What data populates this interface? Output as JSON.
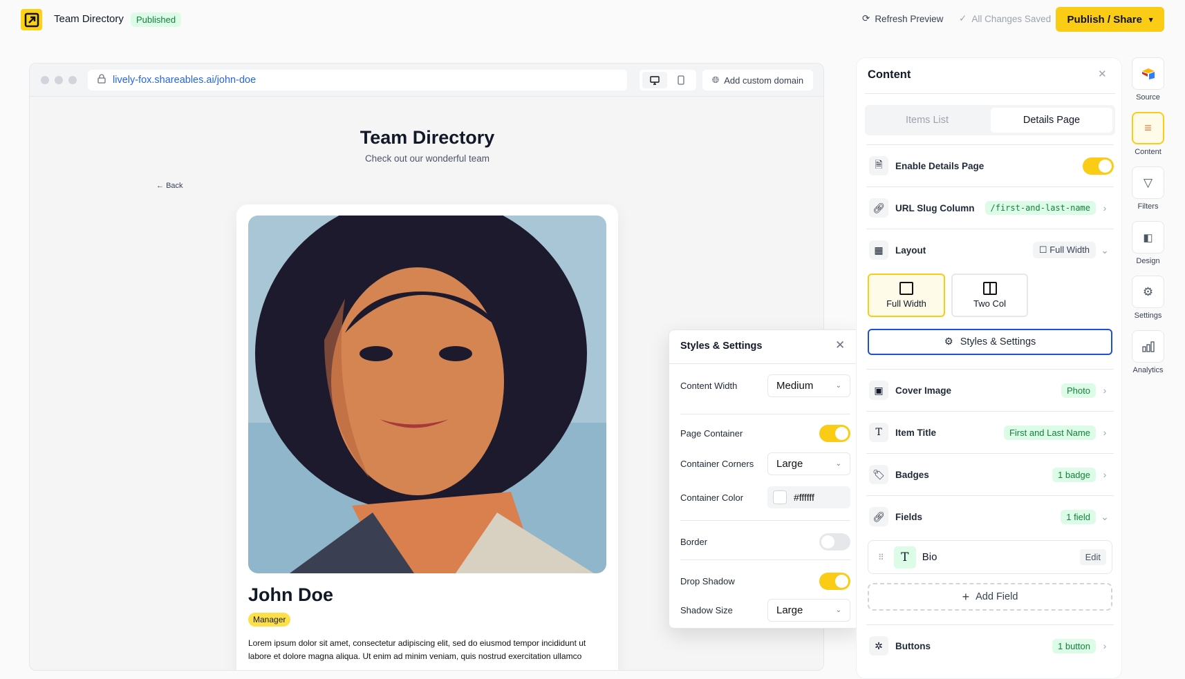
{
  "topbar": {
    "title": "Team Directory",
    "status": "Published",
    "refresh": "Refresh Preview",
    "saved": "All Changes Saved",
    "publish": "Publish / Share"
  },
  "browser": {
    "url": "lively-fox.shareables.ai/john-doe",
    "add_domain": "Add custom domain"
  },
  "page": {
    "title": "Team Directory",
    "subtitle": "Check out our wonderful team",
    "back": "Back",
    "name": "John Doe",
    "badge": "Manager",
    "bio": "Lorem ipsum dolor sit amet, consectetur adipiscing elit, sed do eiusmod tempor incididunt ut labore et dolore magna aliqua. Ut enim ad minim veniam, quis nostrud exercitation ullamco"
  },
  "styles": {
    "title": "Styles & Settings",
    "content_width": {
      "label": "Content Width",
      "value": "Medium"
    },
    "page_container": {
      "label": "Page Container",
      "on": true
    },
    "container_corners": {
      "label": "Container Corners",
      "value": "Large"
    },
    "container_color": {
      "label": "Container Color",
      "value": "#ffffff"
    },
    "border": {
      "label": "Border",
      "on": false
    },
    "drop_shadow": {
      "label": "Drop Shadow",
      "on": true
    },
    "shadow_size": {
      "label": "Shadow Size",
      "value": "Large"
    }
  },
  "content": {
    "title": "Content",
    "tabs": [
      "Items List",
      "Details Page"
    ],
    "active_tab": "Details Page",
    "enable_details": {
      "label": "Enable Details Page",
      "on": true
    },
    "url_slug": {
      "label": "URL Slug Column",
      "value": "/first-and-last-name"
    },
    "layout": {
      "label": "Layout",
      "value": "Full Width",
      "options": [
        "Full Width",
        "Two Col"
      ]
    },
    "styles_button": "Styles & Settings",
    "cover": {
      "label": "Cover Image",
      "value": "Photo"
    },
    "item_title": {
      "label": "Item Title",
      "value": "First and Last Name"
    },
    "badges": {
      "label": "Badges",
      "value": "1 badge"
    },
    "fields": {
      "label": "Fields",
      "value": "1 field",
      "items": [
        {
          "name": "Bio",
          "edit": "Edit"
        }
      ],
      "add": "Add Field"
    },
    "buttons": {
      "label": "Buttons",
      "value": "1 button"
    }
  },
  "rail": [
    "Source",
    "Content",
    "Filters",
    "Design",
    "Settings",
    "Analytics"
  ],
  "colors": {
    "accent": "#facc15",
    "link": "#2563eb",
    "badge_green_bg": "#dcfce7",
    "badge_green_text": "#15803d",
    "focus_blue": "#1d4ed8"
  }
}
